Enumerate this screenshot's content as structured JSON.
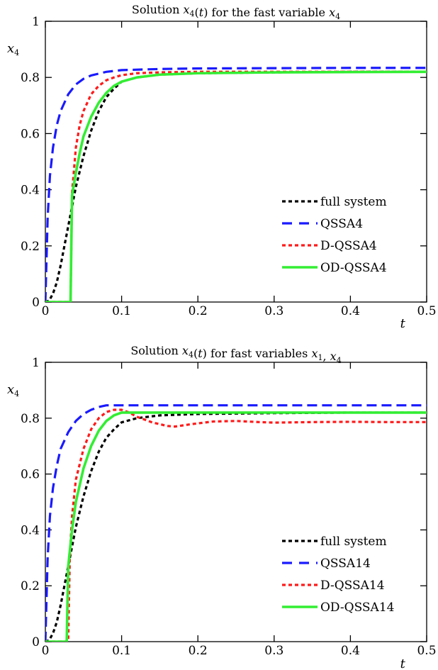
{
  "colors": {
    "full": "#000000",
    "qssa": "#1a1aff",
    "dqssa": "#ff1a1a",
    "odqssa": "#33ee33"
  },
  "chart_data": [
    {
      "type": "line",
      "title_parts": [
        "Solution ",
        "x",
        "4",
        "(t)",
        " for the fast variable ",
        "x",
        "4"
      ],
      "xlabel": "t",
      "ylabel_main": "x",
      "ylabel_sub": "4",
      "xlim": [
        0,
        0.5
      ],
      "ylim": [
        0,
        1
      ],
      "xticks": [
        "0",
        "0.1",
        "0.2",
        "0.3",
        "0.4",
        "0.5"
      ],
      "yticks": [
        "0",
        "0.2",
        "0.4",
        "0.6",
        "0.8",
        "1"
      ],
      "legend_position": "lower-right",
      "series": [
        {
          "name": "full system",
          "style": "full",
          "points": [
            [
              0,
              0
            ],
            [
              0.005,
              0.005
            ],
            [
              0.01,
              0.03
            ],
            [
              0.015,
              0.07
            ],
            [
              0.02,
              0.13
            ],
            [
              0.025,
              0.2
            ],
            [
              0.03,
              0.27
            ],
            [
              0.035,
              0.34
            ],
            [
              0.04,
              0.41
            ],
            [
              0.05,
              0.52
            ],
            [
              0.06,
              0.61
            ],
            [
              0.07,
              0.68
            ],
            [
              0.08,
              0.73
            ],
            [
              0.09,
              0.76
            ],
            [
              0.1,
              0.785
            ],
            [
              0.12,
              0.8
            ],
            [
              0.15,
              0.81
            ],
            [
              0.2,
              0.815
            ],
            [
              0.3,
              0.818
            ],
            [
              0.4,
              0.82
            ],
            [
              0.5,
              0.82
            ]
          ]
        },
        {
          "name": "QSSA4",
          "style": "qssa",
          "points": [
            [
              0,
              0
            ],
            [
              0.003,
              0.3
            ],
            [
              0.006,
              0.45
            ],
            [
              0.01,
              0.55
            ],
            [
              0.015,
              0.63
            ],
            [
              0.02,
              0.68
            ],
            [
              0.03,
              0.74
            ],
            [
              0.04,
              0.775
            ],
            [
              0.05,
              0.795
            ],
            [
              0.06,
              0.807
            ],
            [
              0.08,
              0.82
            ],
            [
              0.1,
              0.826
            ],
            [
              0.15,
              0.83
            ],
            [
              0.2,
              0.832
            ],
            [
              0.3,
              0.833
            ],
            [
              0.4,
              0.834
            ],
            [
              0.5,
              0.834
            ]
          ]
        },
        {
          "name": "D-QSSA4",
          "style": "dqssa",
          "points": [
            [
              0,
              0
            ],
            [
              0.033,
              0
            ],
            [
              0.035,
              0.39
            ],
            [
              0.04,
              0.55
            ],
            [
              0.045,
              0.63
            ],
            [
              0.05,
              0.68
            ],
            [
              0.06,
              0.74
            ],
            [
              0.07,
              0.77
            ],
            [
              0.08,
              0.79
            ],
            [
              0.09,
              0.8
            ],
            [
              0.1,
              0.808
            ],
            [
              0.12,
              0.815
            ],
            [
              0.15,
              0.818
            ],
            [
              0.2,
              0.82
            ],
            [
              0.3,
              0.82
            ],
            [
              0.5,
              0.82
            ]
          ]
        },
        {
          "name": "OD-QSSA4",
          "style": "odqssa",
          "points": [
            [
              0,
              0
            ],
            [
              0.033,
              0
            ],
            [
              0.035,
              0.38
            ],
            [
              0.04,
              0.46
            ],
            [
              0.045,
              0.53
            ],
            [
              0.05,
              0.59
            ],
            [
              0.06,
              0.66
            ],
            [
              0.07,
              0.71
            ],
            [
              0.08,
              0.745
            ],
            [
              0.09,
              0.77
            ],
            [
              0.1,
              0.785
            ],
            [
              0.12,
              0.8
            ],
            [
              0.15,
              0.81
            ],
            [
              0.2,
              0.815
            ],
            [
              0.3,
              0.818
            ],
            [
              0.5,
              0.82
            ]
          ]
        }
      ]
    },
    {
      "type": "line",
      "title_parts": [
        "Solution ",
        "x",
        "4",
        "(t)",
        " for fast variables ",
        "x",
        "1",
        ", ",
        "x",
        "4"
      ],
      "xlabel": "t",
      "ylabel_main": "x",
      "ylabel_sub": "4",
      "xlim": [
        0,
        0.5
      ],
      "ylim": [
        0,
        1
      ],
      "xticks": [
        "0",
        "0.1",
        "0.2",
        "0.3",
        "0.4",
        "0.5"
      ],
      "yticks": [
        "0",
        "0.2",
        "0.4",
        "0.6",
        "0.8",
        "1"
      ],
      "legend_position": "lower-right",
      "series": [
        {
          "name": "full system",
          "style": "full",
          "points": [
            [
              0,
              0
            ],
            [
              0.005,
              0.005
            ],
            [
              0.01,
              0.03
            ],
            [
              0.015,
              0.07
            ],
            [
              0.02,
              0.13
            ],
            [
              0.025,
              0.2
            ],
            [
              0.03,
              0.27
            ],
            [
              0.035,
              0.34
            ],
            [
              0.04,
              0.41
            ],
            [
              0.05,
              0.52
            ],
            [
              0.06,
              0.61
            ],
            [
              0.07,
              0.68
            ],
            [
              0.08,
              0.73
            ],
            [
              0.09,
              0.76
            ],
            [
              0.1,
              0.785
            ],
            [
              0.12,
              0.8
            ],
            [
              0.15,
              0.81
            ],
            [
              0.2,
              0.815
            ],
            [
              0.3,
              0.818
            ],
            [
              0.4,
              0.82
            ],
            [
              0.5,
              0.82
            ]
          ]
        },
        {
          "name": "QSSA14",
          "style": "qssa",
          "points": [
            [
              0,
              0
            ],
            [
              0.003,
              0.3
            ],
            [
              0.006,
              0.45
            ],
            [
              0.01,
              0.55
            ],
            [
              0.015,
              0.63
            ],
            [
              0.02,
              0.69
            ],
            [
              0.03,
              0.75
            ],
            [
              0.04,
              0.79
            ],
            [
              0.05,
              0.815
            ],
            [
              0.06,
              0.83
            ],
            [
              0.07,
              0.84
            ],
            [
              0.08,
              0.846
            ],
            [
              0.1,
              0.846
            ],
            [
              0.2,
              0.846
            ],
            [
              0.3,
              0.846
            ],
            [
              0.4,
              0.846
            ],
            [
              0.5,
              0.846
            ]
          ]
        },
        {
          "name": "D-QSSA14",
          "style": "dqssa",
          "points": [
            [
              0,
              0
            ],
            [
              0.03,
              0
            ],
            [
              0.032,
              0.3
            ],
            [
              0.035,
              0.45
            ],
            [
              0.04,
              0.58
            ],
            [
              0.05,
              0.69
            ],
            [
              0.06,
              0.76
            ],
            [
              0.07,
              0.8
            ],
            [
              0.08,
              0.822
            ],
            [
              0.09,
              0.83
            ],
            [
              0.1,
              0.83
            ],
            [
              0.11,
              0.82
            ],
            [
              0.12,
              0.805
            ],
            [
              0.14,
              0.785
            ],
            [
              0.16,
              0.772
            ],
            [
              0.17,
              0.77
            ],
            [
              0.19,
              0.778
            ],
            [
              0.22,
              0.788
            ],
            [
              0.25,
              0.79
            ],
            [
              0.28,
              0.786
            ],
            [
              0.3,
              0.784
            ],
            [
              0.35,
              0.786
            ],
            [
              0.4,
              0.787
            ],
            [
              0.45,
              0.786
            ],
            [
              0.5,
              0.786
            ]
          ]
        },
        {
          "name": "OD-QSSA14",
          "style": "odqssa",
          "points": [
            [
              0,
              0
            ],
            [
              0.028,
              0
            ],
            [
              0.03,
              0.27
            ],
            [
              0.035,
              0.4
            ],
            [
              0.04,
              0.5
            ],
            [
              0.05,
              0.62
            ],
            [
              0.06,
              0.7
            ],
            [
              0.07,
              0.755
            ],
            [
              0.08,
              0.79
            ],
            [
              0.09,
              0.81
            ],
            [
              0.1,
              0.82
            ],
            [
              0.12,
              0.82
            ],
            [
              0.2,
              0.82
            ],
            [
              0.3,
              0.82
            ],
            [
              0.4,
              0.82
            ],
            [
              0.5,
              0.82
            ]
          ]
        }
      ]
    }
  ]
}
